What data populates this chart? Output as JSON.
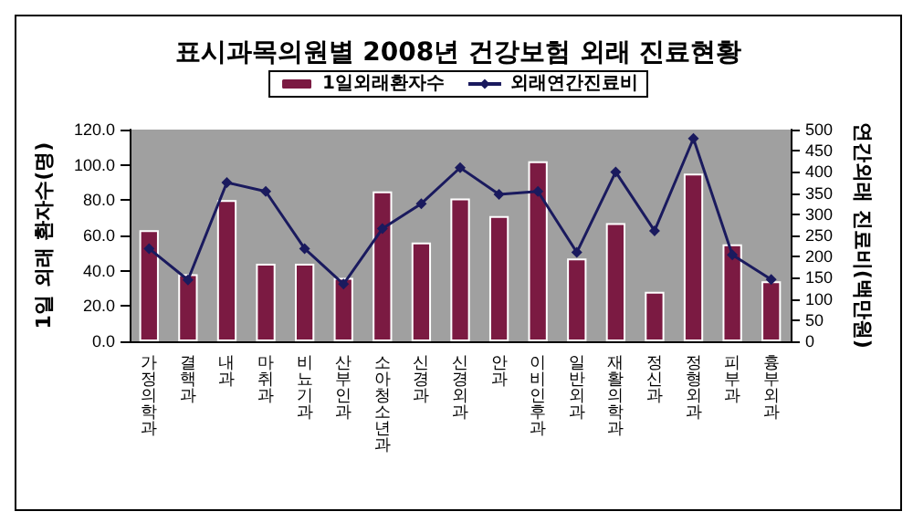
{
  "chart_data": {
    "type": "bar",
    "title": "표시과목의원별 2008년 건강보험 외래 진료현황",
    "ylabel": "1일 외래 환자수(명)",
    "y2label": "연간외래 진료비(백만원)",
    "categories": [
      "가정의학과",
      "결핵과",
      "내과",
      "마취과",
      "비뇨기과",
      "산부인과",
      "소아청소년과",
      "신경과",
      "신경외과",
      "안과",
      "이비인후과",
      "일반외과",
      "재활의학과",
      "정신과",
      "정형외과",
      "피부과",
      "흉부외과"
    ],
    "series": [
      {
        "name": "1일외래환자수",
        "color": "#7b1a42",
        "values": [
          63,
          38,
          80,
          44,
          44,
          36,
          85,
          56,
          81,
          71,
          102,
          47,
          67,
          28,
          95,
          55,
          34
        ]
      },
      {
        "name": "외래연간진료비",
        "type": "line",
        "axis": "y2",
        "color": "#1a1a5e",
        "marker": "diamond",
        "values": [
          219,
          145,
          375,
          354,
          219,
          135,
          266,
          325,
          410,
          347,
          354,
          210,
          400,
          261,
          479,
          204,
          146
        ]
      }
    ],
    "ylim": [
      0,
      120
    ],
    "yticks": [
      {
        "value": 0,
        "label": "0.0"
      },
      {
        "value": 20,
        "label": "20.0"
      },
      {
        "value": 40,
        "label": "40.0"
      },
      {
        "value": 60,
        "label": "60.0"
      },
      {
        "value": 80,
        "label": "80.0"
      },
      {
        "value": 100,
        "label": "100.0"
      },
      {
        "value": 120,
        "label": "120.0"
      }
    ],
    "y2lim": [
      0,
      500
    ],
    "y2ticks": [
      0,
      50,
      100,
      150,
      200,
      250,
      300,
      350,
      400,
      450,
      500
    ],
    "legend": "top",
    "grid": false
  }
}
